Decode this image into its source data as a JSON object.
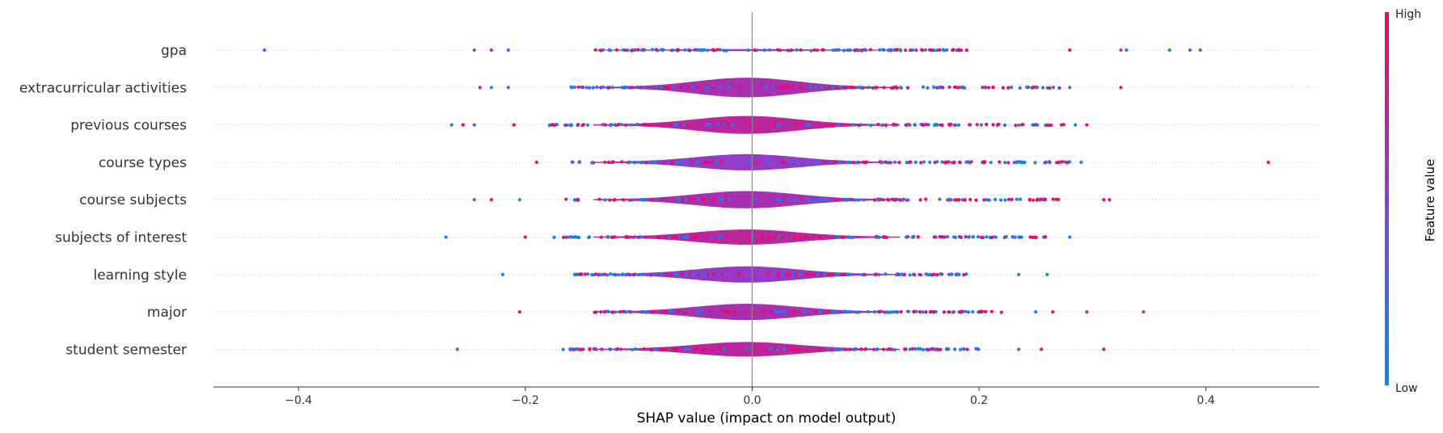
{
  "chart_data": {
    "type": "scatter",
    "subtype": "shap-violin-beeswarm",
    "xlabel": "SHAP value (impact on model output)",
    "xlim": [
      -0.475,
      0.5
    ],
    "xticks": [
      -0.4,
      -0.2,
      0.0,
      0.2,
      0.4
    ],
    "xtick_labels": [
      "−0.4",
      "−0.2",
      "0.0",
      "0.2",
      "0.4"
    ],
    "zero_line": true,
    "colorbar": {
      "label": "Feature value",
      "high_label": "High",
      "low_label": "Low",
      "low_color": "#008bfb",
      "high_color": "#ff0052"
    },
    "features": [
      {
        "name": "gpa",
        "range": [
          -0.43,
          0.395
        ],
        "width": 0.03,
        "core": [
          -0.14,
          0.19
        ],
        "extremes": [
          [
            -0.43,
            0.5
          ],
          [
            -0.245,
            0.4
          ],
          [
            -0.23,
            0.6
          ],
          [
            -0.215,
            0.4
          ],
          [
            0.33,
            0.1
          ],
          [
            0.368,
            0.1
          ],
          [
            0.395,
            0.5
          ],
          [
            0.325,
            0.6
          ],
          [
            0.386,
            0.5
          ],
          [
            0.28,
            0.9
          ]
        ]
      },
      {
        "name": "extracurricular activities",
        "range": [
          -0.24,
          0.325
        ],
        "width": 0.55,
        "core": [
          -0.16,
          0.275
        ],
        "extremes": [
          [
            -0.24,
            0.9
          ],
          [
            -0.23,
            0.1
          ],
          [
            -0.215,
            0.5
          ],
          [
            0.28,
            0.1
          ],
          [
            0.325,
            0.9
          ]
        ]
      },
      {
        "name": "previous courses",
        "range": [
          -0.265,
          0.3
        ],
        "width": 0.5,
        "core": [
          -0.18,
          0.275
        ],
        "extremes": [
          [
            -0.265,
            0.1
          ],
          [
            -0.255,
            0.9
          ],
          [
            -0.245,
            0.1
          ],
          [
            -0.21,
            0.9
          ],
          [
            0.285,
            0.1
          ],
          [
            0.295,
            0.9
          ]
        ]
      },
      {
        "name": "course types",
        "range": [
          -0.19,
          0.455
        ],
        "width": 0.45,
        "core": [
          -0.16,
          0.28
        ],
        "extremes": [
          [
            -0.19,
            0.9
          ],
          [
            0.29,
            0.1
          ],
          [
            0.455,
            0.9
          ]
        ]
      },
      {
        "name": "course subjects",
        "range": [
          -0.245,
          0.315
        ],
        "width": 0.48,
        "core": [
          -0.17,
          0.27
        ],
        "extremes": [
          [
            -0.245,
            0.1
          ],
          [
            -0.23,
            0.9
          ],
          [
            -0.205,
            0.1
          ],
          [
            0.31,
            0.9
          ],
          [
            0.315,
            0.9
          ]
        ]
      },
      {
        "name": "subjects of interest",
        "range": [
          -0.27,
          0.28
        ],
        "width": 0.42,
        "core": [
          -0.18,
          0.26
        ],
        "extremes": [
          [
            -0.27,
            0.1
          ],
          [
            -0.2,
            0.9
          ],
          [
            0.28,
            0.1
          ]
        ]
      },
      {
        "name": "learning style",
        "range": [
          -0.22,
          0.26
        ],
        "width": 0.45,
        "core": [
          -0.16,
          0.19
        ],
        "extremes": [
          [
            -0.22,
            0.1
          ],
          [
            0.235,
            0.1
          ],
          [
            0.26,
            0.1
          ]
        ]
      },
      {
        "name": "major",
        "range": [
          -0.205,
          0.345
        ],
        "width": 0.45,
        "core": [
          -0.14,
          0.22
        ],
        "extremes": [
          [
            -0.205,
            0.9
          ],
          [
            0.25,
            0.1
          ],
          [
            0.265,
            0.9
          ],
          [
            0.295,
            0.6
          ],
          [
            0.345,
            0.5
          ]
        ]
      },
      {
        "name": "student semester",
        "range": [
          -0.26,
          0.31
        ],
        "width": 0.4,
        "core": [
          -0.17,
          0.2
        ],
        "extremes": [
          [
            -0.26,
            0.1
          ],
          [
            0.235,
            0.1
          ],
          [
            0.255,
            0.9
          ],
          [
            0.31,
            0.9
          ]
        ]
      }
    ]
  }
}
